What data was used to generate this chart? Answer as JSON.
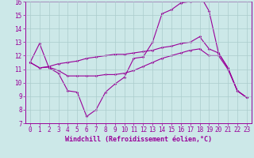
{
  "bg_color": "#cce8e8",
  "grid_color": "#aacccc",
  "line_color": "#990099",
  "xlim": [
    -0.5,
    23.5
  ],
  "ylim": [
    7,
    16
  ],
  "xticks": [
    0,
    1,
    2,
    3,
    4,
    5,
    6,
    7,
    8,
    9,
    10,
    11,
    12,
    13,
    14,
    15,
    16,
    17,
    18,
    19,
    20,
    21,
    22,
    23
  ],
  "yticks": [
    7,
    8,
    9,
    10,
    11,
    12,
    13,
    14,
    15,
    16
  ],
  "line1_x": [
    0,
    1,
    2,
    3,
    4,
    5,
    6,
    7,
    8,
    9,
    10,
    11,
    12,
    13,
    14,
    15,
    16,
    17,
    18,
    19,
    20,
    21,
    22,
    23
  ],
  "line1_y": [
    11.5,
    12.9,
    11.1,
    10.7,
    9.4,
    9.3,
    7.5,
    8.0,
    9.3,
    9.9,
    10.4,
    11.8,
    11.9,
    13.0,
    15.1,
    15.4,
    15.9,
    16.0,
    16.5,
    15.3,
    12.2,
    11.1,
    9.4,
    8.9
  ],
  "line2_x": [
    0,
    1,
    2,
    3,
    4,
    5,
    6,
    7,
    8,
    9,
    10,
    11,
    12,
    13,
    14,
    15,
    16,
    17,
    18,
    19,
    20,
    21,
    22,
    23
  ],
  "line2_y": [
    11.5,
    11.1,
    11.15,
    10.9,
    10.5,
    10.5,
    10.5,
    10.5,
    10.6,
    10.6,
    10.7,
    10.9,
    11.2,
    11.5,
    11.8,
    12.0,
    12.2,
    12.4,
    12.5,
    12.0,
    12.0,
    11.0,
    9.4,
    8.9
  ],
  "line3_x": [
    0,
    1,
    2,
    3,
    4,
    5,
    6,
    7,
    8,
    9,
    10,
    11,
    12,
    13,
    14,
    15,
    16,
    17,
    18,
    19,
    20,
    21,
    22,
    23
  ],
  "line3_y": [
    11.5,
    11.1,
    11.2,
    11.4,
    11.5,
    11.6,
    11.8,
    11.9,
    12.0,
    12.1,
    12.1,
    12.2,
    12.3,
    12.4,
    12.6,
    12.7,
    12.9,
    13.0,
    13.4,
    12.5,
    12.2,
    11.1,
    9.4,
    8.9
  ],
  "xlabel": "Windchill (Refroidissement éolien,°C)",
  "marker": "D",
  "markersize": 1.8,
  "linewidth": 0.8,
  "font_size": 5.5,
  "xlabel_fontsize": 6.0
}
